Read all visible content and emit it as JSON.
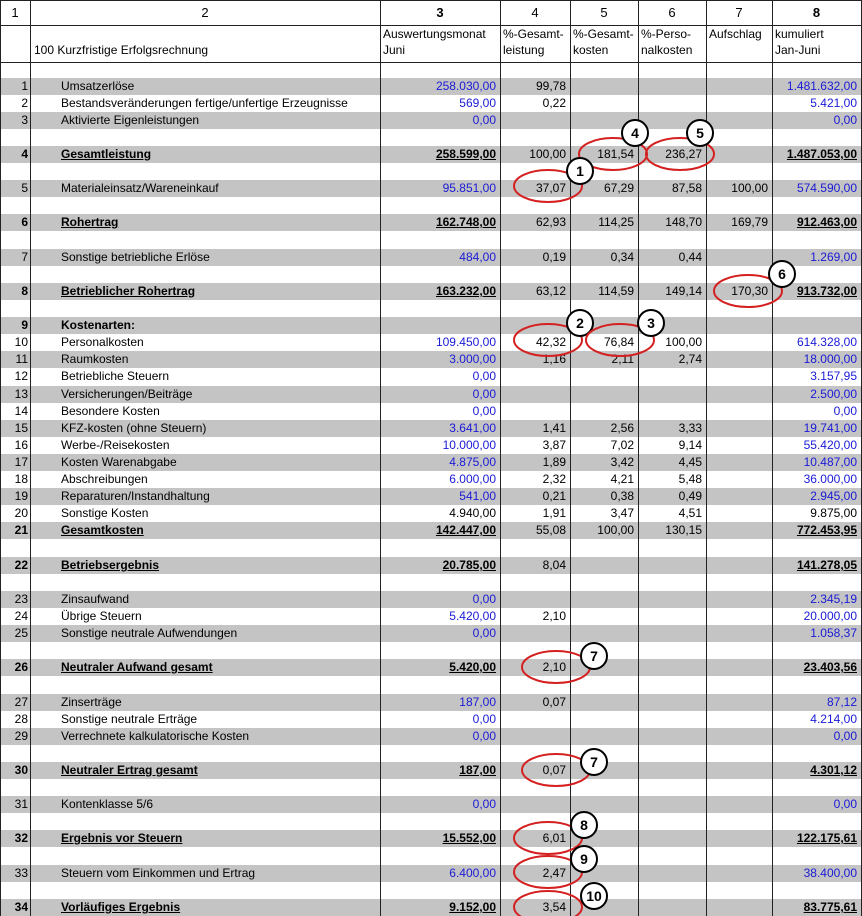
{
  "header": {
    "columns": [
      "1",
      "2",
      "3",
      "4",
      "5",
      "6",
      "7",
      "8"
    ],
    "subtitle": "100 Kurzfristige Erfolgsrechnung",
    "column_titles": [
      [
        "Auswertungsmonat",
        "Juni"
      ],
      [
        "%-Gesamt-",
        "leistung"
      ],
      [
        "%-Gesamt-",
        "kosten"
      ],
      [
        "%-Perso-",
        "nalkosten"
      ],
      [
        "Aufschlag"
      ],
      [
        "kumuliert",
        "Jan-Juni"
      ]
    ]
  },
  "table": {
    "rows": [
      {
        "num": "1",
        "label": "Umsatzerlöse",
        "cells": [
          "258.030,00",
          "99,78",
          null,
          null,
          null,
          "1.481.632,00"
        ],
        "color": "#1a1ad6"
      },
      {
        "num": "2",
        "label": "Bestandsveränderungen fertige/unfertige Erzeugnisse",
        "cells": [
          "569,00",
          "0,22",
          null,
          null,
          null,
          "5.421,00"
        ],
        "color": "#1a1ad6"
      },
      {
        "num": "3",
        "label": "Aktivierte Eigenleistungen",
        "cells": [
          "0,00",
          null,
          null,
          null,
          null,
          "0,00"
        ],
        "color": "#1a1ad6"
      },
      {
        "num": "4",
        "label": "Gesamtleistung",
        "cells": [
          "258.599,00",
          "100,00",
          "181,54",
          "236,27",
          null,
          "1.487.053,00"
        ],
        "style": "total"
      },
      {
        "num": "5",
        "label": "Materialeinsatz/Wareneinkauf",
        "cells": [
          "95.851,00",
          "37,07",
          "67,29",
          "87,58",
          "100,00",
          "574.590,00"
        ],
        "color": "#1a1ad6"
      },
      {
        "num": "6",
        "label": "Rohertrag",
        "cells": [
          "162.748,00",
          "62,93",
          "114,25",
          "148,70",
          "169,79",
          "912.463,00"
        ],
        "style": "total"
      },
      {
        "num": "7",
        "label": "Sonstige betriebliche Erlöse",
        "cells": [
          "484,00",
          "0,19",
          "0,34",
          "0,44",
          null,
          "1.269,00"
        ],
        "color": "#1a1ad6"
      },
      {
        "num": "8",
        "label": "Betrieblicher Rohertrag",
        "cells": [
          "163.232,00",
          "63,12",
          "114,59",
          "149,14",
          "170,30",
          "913.732,00"
        ],
        "style": "total"
      },
      {
        "num": "9",
        "label": "Kostenarten:",
        "cells": [
          null,
          null,
          null,
          null,
          null,
          null
        ],
        "style": "heading"
      },
      {
        "num": "10",
        "label": "Personalkosten",
        "cells": [
          "109.450,00",
          "42,32",
          "76,84",
          "100,00",
          null,
          "614.328,00"
        ],
        "color": "#1a1ad6"
      },
      {
        "num": "11",
        "label": "Raumkosten",
        "cells": [
          "3.000,00",
          "1,16",
          "2,11",
          "2,74",
          null,
          "18.000,00"
        ],
        "color": "#1a1ad6"
      },
      {
        "num": "12",
        "label": "Betriebliche Steuern",
        "cells": [
          "0,00",
          null,
          null,
          null,
          null,
          "3.157,95"
        ],
        "color": "#1a1ad6"
      },
      {
        "num": "13",
        "label": "Versicherungen/Beiträge",
        "cells": [
          "0,00",
          null,
          null,
          null,
          null,
          "2.500,00"
        ],
        "color": "#1a1ad6"
      },
      {
        "num": "14",
        "label": "Besondere Kosten",
        "cells": [
          "0,00",
          null,
          null,
          null,
          null,
          "0,00"
        ],
        "color": "#1a1ad6"
      },
      {
        "num": "15",
        "label": "KFZ-kosten (ohne Steuern)",
        "cells": [
          "3.641,00",
          "1,41",
          "2,56",
          "3,33",
          null,
          "19.741,00"
        ],
        "color": "#1a1ad6"
      },
      {
        "num": "16",
        "label": "Werbe-/Reisekosten",
        "cells": [
          "10.000,00",
          "3,87",
          "7,02",
          "9,14",
          null,
          "55.420,00"
        ],
        "color": "#1a1ad6"
      },
      {
        "num": "17",
        "label": "Kosten Warenabgabe",
        "cells": [
          "4.875,00",
          "1,89",
          "3,42",
          "4,45",
          null,
          "10.487,00"
        ],
        "color": "#1a1ad6"
      },
      {
        "num": "18",
        "label": "Abschreibungen",
        "cells": [
          "6.000,00",
          "2,32",
          "4,21",
          "5,48",
          null,
          "36.000,00"
        ],
        "color": "#1a1ad6"
      },
      {
        "num": "19",
        "label": "Reparaturen/Instandhaltung",
        "cells": [
          "541,00",
          "0,21",
          "0,38",
          "0,49",
          null,
          "2.945,00"
        ],
        "color": "#1a1ad6"
      },
      {
        "num": "20",
        "label": "Sonstige Kosten",
        "cells": [
          "4.940,00",
          "1,91",
          "3,47",
          "4,51",
          null,
          "9.875,00"
        ]
      },
      {
        "num": "21",
        "label": "Gesamtkosten",
        "cells": [
          "142.447,00",
          "55,08",
          "100,00",
          "130,15",
          null,
          "772.453,95"
        ],
        "style": "total"
      },
      {
        "num": "22",
        "label": "Betriebsergebnis",
        "cells": [
          "20.785,00",
          "8,04",
          null,
          null,
          null,
          "141.278,05"
        ],
        "style": "total"
      },
      {
        "num": "23",
        "label": "Zinsaufwand",
        "cells": [
          "0,00",
          null,
          null,
          null,
          null,
          "2.345,19"
        ],
        "color": "#1a1ad6"
      },
      {
        "num": "24",
        "label": "Übrige Steuern",
        "cells": [
          "5.420,00",
          "2,10",
          null,
          null,
          null,
          "20.000,00"
        ],
        "color": "#1a1ad6"
      },
      {
        "num": "25",
        "label": "Sonstige neutrale Aufwendungen",
        "cells": [
          "0,00",
          null,
          null,
          null,
          null,
          "1.058,37"
        ],
        "color": "#1a1ad6"
      },
      {
        "num": "26",
        "label": "Neutraler Aufwand gesamt",
        "cells": [
          "5.420,00",
          "2,10",
          null,
          null,
          null,
          "23.403,56"
        ],
        "style": "total"
      },
      {
        "num": "27",
        "label": "Zinserträge",
        "cells": [
          "187,00",
          "0,07",
          null,
          null,
          null,
          "87,12"
        ],
        "color": "#1a1ad6"
      },
      {
        "num": "28",
        "label": "Sonstige neutrale Erträge",
        "cells": [
          "0,00",
          null,
          null,
          null,
          null,
          "4.214,00"
        ],
        "color": "#1a1ad6"
      },
      {
        "num": "29",
        "label": "Verrechnete kalkulatorische Kosten",
        "cells": [
          "0,00",
          null,
          null,
          null,
          null,
          "0,00"
        ],
        "color": "#1a1ad6"
      },
      {
        "num": "30",
        "label": "Neutraler Ertrag gesamt",
        "cells": [
          "187,00",
          "0,07",
          null,
          null,
          null,
          "4.301,12"
        ],
        "style": "total"
      },
      {
        "num": "31",
        "label": "Kontenklasse 5/6",
        "cells": [
          "0,00",
          null,
          null,
          null,
          null,
          "0,00"
        ],
        "color": "#1a1ad6"
      },
      {
        "num": "32",
        "label": "Ergebnis vor Steuern",
        "cells": [
          "15.552,00",
          "6,01",
          null,
          null,
          null,
          "122.175,61"
        ],
        "style": "total"
      },
      {
        "num": "33",
        "label": "Steuern vom Einkommen und Ertrag",
        "cells": [
          "6.400,00",
          "2,47",
          null,
          null,
          null,
          "38.400,00"
        ],
        "color": "#1a1ad6"
      },
      {
        "num": "34",
        "label": "Vorläufiges Ergebnis",
        "cells": [
          "9.152,00",
          "3,54",
          null,
          null,
          null,
          "83.775,61"
        ],
        "style": "total"
      }
    ]
  },
  "annotations": [
    "4",
    "5",
    "1",
    "6",
    "2",
    "3",
    "7",
    "7",
    "8",
    "9",
    "10"
  ]
}
